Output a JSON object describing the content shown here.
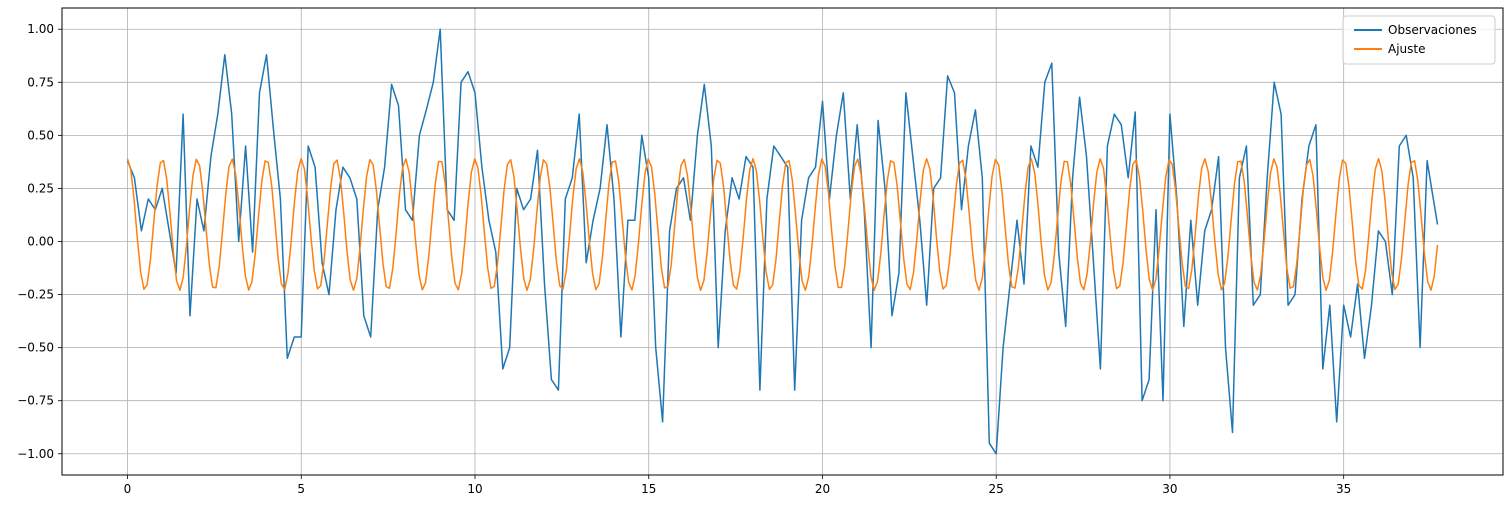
{
  "chart_data": {
    "type": "line",
    "title": "",
    "xlabel": "",
    "ylabel": "",
    "xlim": [
      -1.885,
      39.585
    ],
    "ylim": [
      -1.1,
      1.1
    ],
    "xticks": [
      0,
      5,
      10,
      15,
      20,
      25,
      30,
      35
    ],
    "yticks": [
      -1.0,
      -0.75,
      -0.5,
      -0.25,
      0.0,
      0.25,
      0.5,
      0.75,
      1.0
    ],
    "xtick_labels": [
      "0",
      "5",
      "10",
      "15",
      "20",
      "25",
      "30",
      "35"
    ],
    "ytick_labels": [
      "−1.00",
      "−0.75",
      "−0.50",
      "−0.25",
      "0.00",
      "0.25",
      "0.50",
      "0.75",
      "1.00"
    ],
    "grid": true,
    "legend_position": "top-right",
    "series": [
      {
        "name": "Observaciones",
        "color": "#1f77b4",
        "x": [
          0.0,
          0.2,
          0.4,
          0.6,
          0.8,
          1.0,
          1.2,
          1.4,
          1.6,
          1.8,
          2.0,
          2.2,
          2.4,
          2.6,
          2.8,
          3.0,
          3.2,
          3.4,
          3.6,
          3.8,
          4.0,
          4.2,
          4.4,
          4.6,
          4.8,
          5.0,
          5.2,
          5.4,
          5.6,
          5.8,
          6.0,
          6.2,
          6.4,
          6.6,
          6.8,
          7.0,
          7.2,
          7.4,
          7.6,
          7.8,
          8.0,
          8.2,
          8.4,
          8.6,
          8.8,
          9.0,
          9.2,
          9.4,
          9.6,
          9.8,
          10.0,
          10.2,
          10.4,
          10.6,
          10.8,
          11.0,
          11.2,
          11.4,
          11.6,
          11.8,
          12.0,
          12.2,
          12.4,
          12.6,
          12.8,
          13.0,
          13.2,
          13.4,
          13.6,
          13.8,
          14.0,
          14.2,
          14.4,
          14.6,
          14.8,
          15.0,
          15.2,
          15.4,
          15.6,
          15.8,
          16.0,
          16.2,
          16.4,
          16.6,
          16.8,
          17.0,
          17.2,
          17.4,
          17.6,
          17.8,
          18.0,
          18.2,
          18.4,
          18.6,
          18.8,
          19.0,
          19.2,
          19.4,
          19.6,
          19.8,
          20.0,
          20.2,
          20.4,
          20.6,
          20.8,
          21.0,
          21.2,
          21.4,
          21.6,
          21.8,
          22.0,
          22.2,
          22.4,
          22.6,
          22.8,
          23.0,
          23.2,
          23.4,
          23.6,
          23.8,
          24.0,
          24.2,
          24.4,
          24.6,
          24.8,
          25.0,
          25.2,
          25.4,
          25.6,
          25.8,
          26.0,
          26.2,
          26.4,
          26.6,
          26.8,
          27.0,
          27.2,
          27.4,
          27.6,
          27.8,
          28.0,
          28.2,
          28.4,
          28.6,
          28.8,
          29.0,
          29.2,
          29.4,
          29.6,
          29.8,
          30.0,
          30.2,
          30.4,
          30.6,
          30.8,
          31.0,
          31.2,
          31.4,
          31.6,
          31.8,
          32.0,
          32.2,
          32.4,
          32.6,
          32.8,
          33.0,
          33.2,
          33.4,
          33.6,
          33.8,
          34.0,
          34.2,
          34.4,
          34.6,
          34.8,
          35.0,
          35.2,
          35.4,
          35.6,
          35.8,
          36.0,
          36.2,
          36.4,
          36.6,
          36.8,
          37.0,
          37.2,
          37.4,
          37.7
        ],
        "y": [
          0.38,
          0.3,
          0.05,
          0.2,
          0.15,
          0.25,
          0.05,
          -0.15,
          0.6,
          -0.35,
          0.2,
          0.05,
          0.4,
          0.6,
          0.88,
          0.6,
          0.0,
          0.45,
          -0.05,
          0.7,
          0.88,
          0.53,
          0.2,
          -0.55,
          -0.45,
          -0.45,
          0.45,
          0.35,
          -0.1,
          -0.25,
          0.15,
          0.35,
          0.3,
          0.2,
          -0.35,
          -0.45,
          0.15,
          0.35,
          0.74,
          0.64,
          0.15,
          0.1,
          0.5,
          0.62,
          0.75,
          1.0,
          0.15,
          0.1,
          0.75,
          0.8,
          0.7,
          0.35,
          0.1,
          -0.05,
          -0.6,
          -0.5,
          0.25,
          0.15,
          0.2,
          0.43,
          -0.2,
          -0.65,
          -0.7,
          0.2,
          0.3,
          0.6,
          -0.1,
          0.1,
          0.25,
          0.55,
          0.2,
          -0.45,
          0.1,
          0.1,
          0.5,
          0.3,
          -0.5,
          -0.85,
          0.05,
          0.25,
          0.3,
          0.1,
          0.5,
          0.74,
          0.45,
          -0.5,
          0.05,
          0.3,
          0.2,
          0.4,
          0.35,
          -0.7,
          0.2,
          0.45,
          0.4,
          0.35,
          -0.7,
          0.1,
          0.3,
          0.35,
          0.66,
          0.2,
          0.5,
          0.7,
          0.2,
          0.55,
          0.15,
          -0.5,
          0.57,
          0.25,
          -0.35,
          -0.15,
          0.7,
          0.4,
          0.1,
          -0.3,
          0.25,
          0.3,
          0.78,
          0.7,
          0.15,
          0.45,
          0.62,
          0.3,
          -0.95,
          -1.0,
          -0.5,
          -0.2,
          0.1,
          -0.2,
          0.45,
          0.35,
          0.75,
          0.84,
          -0.05,
          -0.4,
          0.3,
          0.68,
          0.4,
          -0.1,
          -0.6,
          0.45,
          0.6,
          0.55,
          0.3,
          0.61,
          -0.75,
          -0.65,
          0.15,
          -0.75,
          0.6,
          0.2,
          -0.4,
          0.1,
          -0.3,
          0.05,
          0.15,
          0.4,
          -0.5,
          -0.9,
          0.3,
          0.45,
          -0.3,
          -0.25,
          0.3,
          0.75,
          0.6,
          -0.3,
          -0.25,
          0.2,
          0.45,
          0.55,
          -0.6,
          -0.3,
          -0.85,
          -0.3,
          -0.45,
          -0.2,
          -0.55,
          -0.3,
          0.05,
          0.0,
          -0.25,
          0.45,
          0.5,
          0.3,
          -0.5,
          0.38,
          0.08
        ]
      },
      {
        "name": "Ajuste",
        "color": "#ff7f0e",
        "x_start": 0.0,
        "x_end": 37.7,
        "samples": 400,
        "model": {
          "offset": 0.08,
          "amplitude": 0.31,
          "period": 1.0,
          "phase": 0.0
        }
      }
    ]
  }
}
